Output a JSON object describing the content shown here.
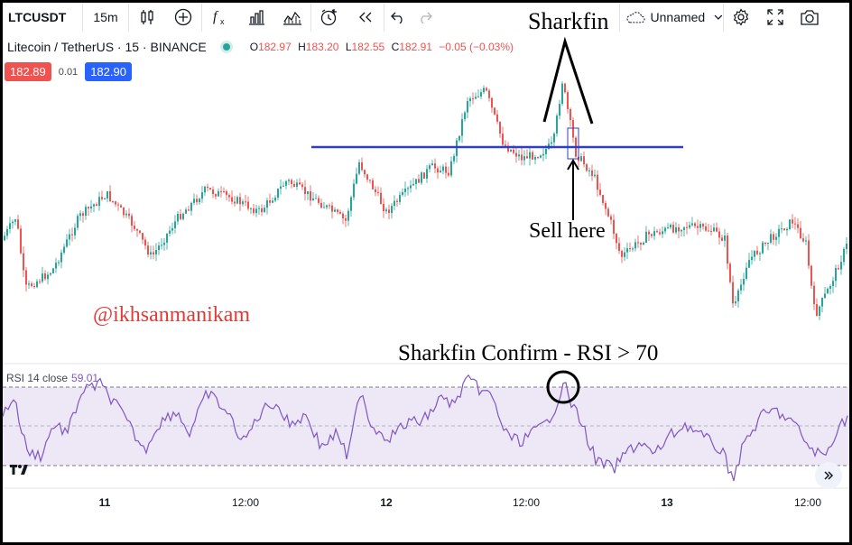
{
  "toolbar": {
    "symbol": "LTCUSDT",
    "interval": "15m",
    "layout_name": "Unnamed",
    "icons": [
      "candles-icon",
      "add-icon",
      "indicators-icon",
      "bar-chart-icon",
      "templates-icon",
      "alert-icon",
      "replay-icon",
      "undo-icon",
      "redo-icon",
      "cloud-icon",
      "chevron-down-icon",
      "settings-icon",
      "fullscreen-icon",
      "camera-icon"
    ]
  },
  "legend": {
    "title": "Litecoin / TetherUS · 15 · BINANCE",
    "o_label": "O",
    "o_value": "182.97",
    "h_label": "H",
    "h_value": "183.20",
    "l_label": "L",
    "l_value": "182.55",
    "c_label": "C",
    "c_value": "182.91",
    "change": "−0.05 (−0.03%)"
  },
  "trade": {
    "sell_price": "182.89",
    "spread": "0.01",
    "buy_price": "182.90"
  },
  "annotations": {
    "sharkfin": "Sharkfin",
    "sell_here": "Sell here",
    "confirm": "Sharkfin Confirm - RSI > 70",
    "watermark": "@ikhsanmanikam"
  },
  "rsi": {
    "label": "RSI 14 close",
    "value": "59.01"
  },
  "time_axis": [
    {
      "label": "11",
      "major": true
    },
    {
      "label": "12:00",
      "major": false
    },
    {
      "label": "12",
      "major": true
    },
    {
      "label": "12:00",
      "major": false
    },
    {
      "label": "13",
      "major": true
    },
    {
      "label": "12:00",
      "major": false
    }
  ],
  "colors": {
    "up": "#26a69a",
    "down": "#ef5350",
    "rsi_line": "#7e57c2",
    "rsi_band": "#ede7f6",
    "resistance_line": "#2f3fbf",
    "watermark": "#e53935"
  },
  "chart_data": {
    "type": "candlestick",
    "symbol": "LTCUSDT",
    "approx_close_path": [
      182.2,
      182.6,
      181.4,
      182.9,
      183.3,
      182.6,
      183.1,
      183.2,
      183.0,
      183.6,
      183.2,
      183.4,
      183.0,
      183.8,
      183.5,
      183.0,
      184.2,
      184.6,
      183.9,
      185.3,
      184.1,
      185.1,
      183.7,
      183.8,
      182.7,
      182.2,
      181.4,
      181.8,
      181.1,
      182.5
    ]
  }
}
